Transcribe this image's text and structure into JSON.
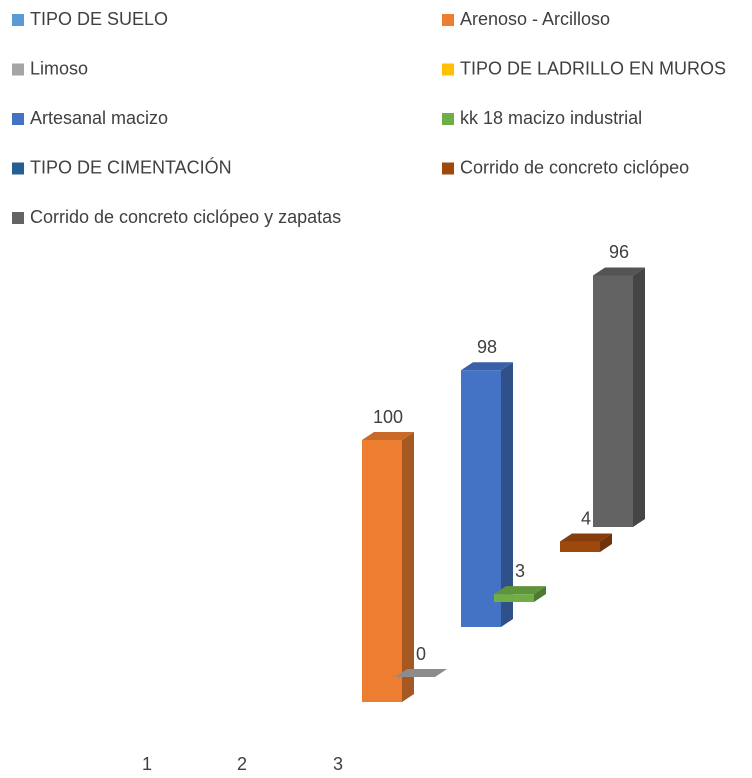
{
  "chart_data": {
    "type": "bar3d",
    "categories": [
      "1",
      "2",
      "3"
    ],
    "series": [
      {
        "name": "TIPO DE SUELO",
        "color": "#5b9bd5",
        "values": [
          null,
          null,
          null
        ]
      },
      {
        "name": "Arenoso - Arcilloso",
        "color": "#ed7d31",
        "values": [
          100,
          null,
          null
        ]
      },
      {
        "name": "Limoso",
        "color": "#a5a5a5",
        "values": [
          0,
          null,
          null
        ]
      },
      {
        "name": "TIPO DE LADRILLO EN MUROS",
        "color": "#ffc000",
        "values": [
          null,
          null,
          null
        ]
      },
      {
        "name": "Artesanal macizo",
        "color": "#4472c4",
        "values": [
          98,
          null,
          null
        ]
      },
      {
        "name": "kk 18 macizo industrial",
        "color": "#70ad47",
        "values": [
          3,
          null,
          null
        ]
      },
      {
        "name": "TIPO DE CIMENTACIÓN",
        "color": "#255e91",
        "values": [
          null,
          null,
          null
        ]
      },
      {
        "name": "Corrido de concreto ciclópeo",
        "color": "#9e480e",
        "values": [
          4,
          null,
          null
        ]
      },
      {
        "name": "Corrido de concreto ciclópeo y zapatas",
        "color": "#636363",
        "values": [
          96,
          null,
          null
        ]
      }
    ],
    "legend": "top"
  }
}
